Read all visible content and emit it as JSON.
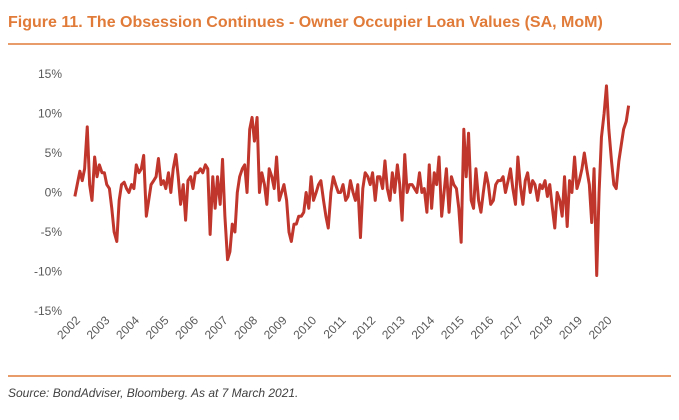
{
  "chart_data": {
    "type": "line",
    "title": "Figure 11. The Obsession Continues - Owner Occupier Loan Values (SA, MoM)",
    "source": "Source: BondAdviser, Bloomberg. As at 7 March 2021.",
    "grid": false,
    "xlim": [
      2001.7,
      2021.0
    ],
    "ylim": [
      -15,
      15
    ],
    "xticks": [
      2002,
      2003,
      2004,
      2005,
      2006,
      2007,
      2008,
      2009,
      2010,
      2011,
      2012,
      2013,
      2014,
      2015,
      2016,
      2017,
      2018,
      2019,
      2020
    ],
    "yticks": [
      {
        "value": -15,
        "label": "-15%"
      },
      {
        "value": -10,
        "label": "-10%"
      },
      {
        "value": -5,
        "label": "-5%"
      },
      {
        "value": 0,
        "label": "0%"
      },
      {
        "value": 5,
        "label": "5%"
      },
      {
        "value": 10,
        "label": "10%"
      },
      {
        "value": 15,
        "label": "15%"
      }
    ],
    "x": [
      2002,
      2002.08,
      2002.17,
      2002.25,
      2002.33,
      2002.42,
      2002.5,
      2002.58,
      2002.67,
      2002.75,
      2002.83,
      2002.92,
      2003,
      2003.08,
      2003.17,
      2003.25,
      2003.33,
      2003.42,
      2003.5,
      2003.58,
      2003.67,
      2003.75,
      2003.83,
      2003.92,
      2004,
      2004.08,
      2004.17,
      2004.25,
      2004.33,
      2004.42,
      2004.5,
      2004.58,
      2004.67,
      2004.75,
      2004.83,
      2004.92,
      2005,
      2005.08,
      2005.17,
      2005.25,
      2005.33,
      2005.42,
      2005.5,
      2005.58,
      2005.67,
      2005.75,
      2005.83,
      2005.92,
      2006,
      2006.08,
      2006.17,
      2006.25,
      2006.33,
      2006.42,
      2006.5,
      2006.58,
      2006.67,
      2006.75,
      2006.83,
      2006.92,
      2007,
      2007.08,
      2007.17,
      2007.25,
      2007.33,
      2007.42,
      2007.5,
      2007.58,
      2007.67,
      2007.75,
      2007.83,
      2007.92,
      2008,
      2008.08,
      2008.17,
      2008.25,
      2008.33,
      2008.42,
      2008.5,
      2008.58,
      2008.67,
      2008.75,
      2008.83,
      2008.92,
      2009,
      2009.08,
      2009.17,
      2009.25,
      2009.33,
      2009.42,
      2009.5,
      2009.58,
      2009.67,
      2009.75,
      2009.83,
      2009.92,
      2010,
      2010.08,
      2010.17,
      2010.25,
      2010.33,
      2010.42,
      2010.5,
      2010.58,
      2010.67,
      2010.75,
      2010.83,
      2010.92,
      2011,
      2011.08,
      2011.17,
      2011.25,
      2011.33,
      2011.42,
      2011.5,
      2011.58,
      2011.67,
      2011.75,
      2011.83,
      2011.92,
      2012,
      2012.08,
      2012.17,
      2012.25,
      2012.33,
      2012.42,
      2012.5,
      2012.58,
      2012.67,
      2012.75,
      2012.83,
      2012.92,
      2013,
      2013.08,
      2013.17,
      2013.25,
      2013.33,
      2013.42,
      2013.5,
      2013.58,
      2013.67,
      2013.75,
      2013.83,
      2013.92,
      2014,
      2014.08,
      2014.17,
      2014.25,
      2014.33,
      2014.42,
      2014.5,
      2014.58,
      2014.67,
      2014.75,
      2014.83,
      2014.92,
      2015,
      2015.08,
      2015.17,
      2015.25,
      2015.33,
      2015.42,
      2015.5,
      2015.58,
      2015.67,
      2015.75,
      2015.83,
      2015.92,
      2016,
      2016.08,
      2016.17,
      2016.25,
      2016.33,
      2016.42,
      2016.5,
      2016.58,
      2016.67,
      2016.75,
      2016.83,
      2016.92,
      2017,
      2017.08,
      2017.17,
      2017.25,
      2017.33,
      2017.42,
      2017.5,
      2017.58,
      2017.67,
      2017.75,
      2017.83,
      2017.92,
      2018,
      2018.08,
      2018.17,
      2018.25,
      2018.33,
      2018.42,
      2018.5,
      2018.58,
      2018.67,
      2018.75,
      2018.83,
      2018.92,
      2019,
      2019.08,
      2019.17,
      2019.25,
      2019.33,
      2019.42,
      2019.5,
      2019.58,
      2019.67,
      2019.75,
      2019.83,
      2019.92,
      2020,
      2020.08,
      2020.17,
      2020.25,
      2020.33,
      2020.42,
      2020.5,
      2020.58,
      2020.67,
      2020.75
    ],
    "series": [
      {
        "color": "#c0362c",
        "values": [
          -0.5,
          1,
          2.7,
          1.5,
          3,
          8.3,
          1,
          -1,
          4.5,
          2,
          3.5,
          2.5,
          2.5,
          1,
          0.5,
          -2,
          -5,
          -6.2,
          -1,
          1,
          1.3,
          0.5,
          0,
          1,
          0.5,
          3.5,
          2.5,
          3,
          4.7,
          -3,
          -1,
          1,
          1.5,
          2,
          4.3,
          1,
          1.5,
          0.5,
          2.5,
          0,
          3,
          4.8,
          2,
          -1.5,
          1,
          -3.5,
          1.5,
          2,
          0.5,
          2.5,
          2.5,
          3,
          2.5,
          3.5,
          3,
          -5.3,
          2,
          -2,
          2,
          -1.5,
          4.2,
          -3,
          -8.5,
          -7.5,
          -4,
          -5,
          0,
          2,
          3,
          3.5,
          0,
          8,
          9.5,
          6.5,
          9.5,
          0,
          2.5,
          1,
          -1.5,
          3,
          2,
          0.5,
          4.5,
          -1,
          0,
          1,
          -1,
          -5,
          -6.2,
          -4,
          -4,
          -3,
          -3,
          -2.5,
          0,
          -2,
          2,
          -1,
          0,
          1,
          1.5,
          -1,
          -3,
          -4.5,
          0,
          2,
          1,
          0,
          0,
          1,
          -1,
          -0.5,
          1.5,
          0,
          -1,
          1,
          -5.7,
          0.5,
          2.5,
          2,
          1,
          2.5,
          -1,
          2,
          2,
          0.5,
          4,
          0.5,
          -1,
          2.5,
          0,
          3.5,
          1,
          -3.5,
          4.8,
          0,
          1,
          1,
          0.5,
          0,
          2.5,
          0,
          0.5,
          -2.5,
          3.5,
          -2,
          2.5,
          1,
          4.5,
          -3,
          0,
          3,
          -2.5,
          2,
          1,
          0.5,
          -2,
          -6.3,
          8,
          2,
          7.5,
          -1,
          -2,
          3,
          -1,
          -2.5,
          0,
          2.5,
          1,
          -1.5,
          -1,
          1,
          1.5,
          1.5,
          2,
          0,
          1.5,
          3,
          0.5,
          -1.5,
          4.5,
          1,
          -1.5,
          1.5,
          2.5,
          0,
          1.5,
          1,
          -1,
          1,
          0.5,
          1.5,
          -0.5,
          1,
          -2,
          -4.5,
          0,
          -1,
          -3,
          2,
          -4.3,
          1.5,
          0,
          4.5,
          0.5,
          1.5,
          3,
          5,
          3,
          1,
          -3.8,
          3,
          -10.5,
          0,
          7,
          10,
          13.5,
          8,
          4,
          1,
          0.5,
          4,
          6,
          8,
          9,
          11
        ]
      }
    ]
  }
}
